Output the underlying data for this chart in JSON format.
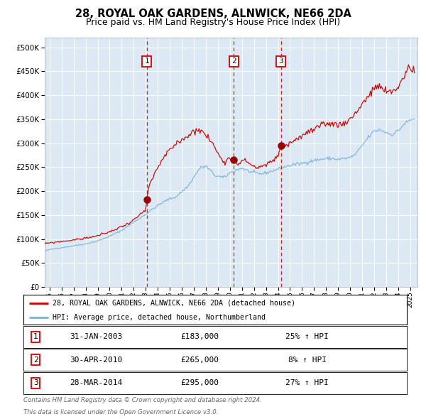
{
  "title": "28, ROYAL OAK GARDENS, ALNWICK, NE66 2DA",
  "subtitle": "Price paid vs. HM Land Registry's House Price Index (HPI)",
  "legend_line1": "28, ROYAL OAK GARDENS, ALNWICK, NE66 2DA (detached house)",
  "legend_line2": "HPI: Average price, detached house, Northumberland",
  "footer1": "Contains HM Land Registry data © Crown copyright and database right 2024.",
  "footer2": "This data is licensed under the Open Government Licence v3.0.",
  "sales": [
    {
      "label": "1",
      "date": "31-JAN-2003",
      "price": 183000,
      "pct": "25%",
      "dir": "↑"
    },
    {
      "label": "2",
      "date": "30-APR-2010",
      "price": 265000,
      "pct": "8%",
      "dir": "↑"
    },
    {
      "label": "3",
      "date": "28-MAR-2014",
      "price": 295000,
      "pct": "27%",
      "dir": "↑"
    }
  ],
  "sale_dates_numeric": [
    2003.08,
    2010.33,
    2014.24
  ],
  "sale_prices": [
    183000,
    265000,
    295000
  ],
  "ylim": [
    0,
    520000
  ],
  "yticks": [
    0,
    50000,
    100000,
    150000,
    200000,
    250000,
    300000,
    350000,
    400000,
    450000,
    500000
  ],
  "xlim_start": 1994.6,
  "xlim_end": 2025.6,
  "background_color": "#dce9f5",
  "red_line_color": "#cc0000",
  "blue_line_color": "#7ab0d4",
  "grid_color": "#ffffff",
  "vline_color": "#cc0000",
  "sale_dot_color": "#990000",
  "label_box_color": "#cc0000"
}
